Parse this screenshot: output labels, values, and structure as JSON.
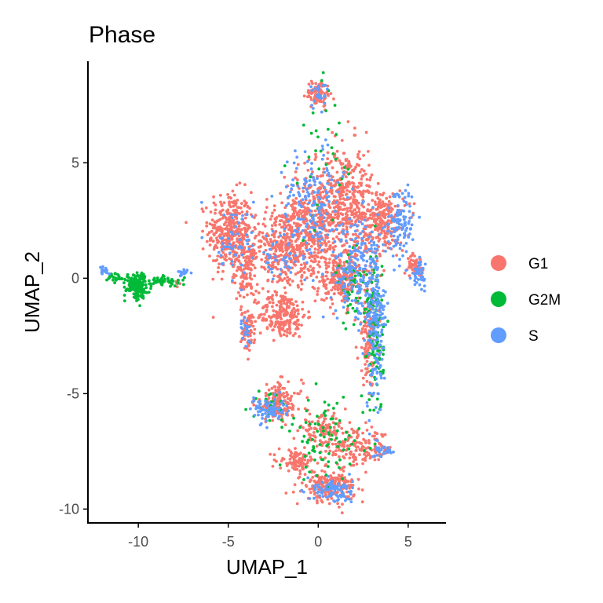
{
  "chart_data": {
    "type": "scatter",
    "title": "Phase",
    "xlabel": "UMAP_1",
    "ylabel": "UMAP_2",
    "xlim": [
      -12.8,
      7.1
    ],
    "ylim": [
      -10.6,
      9.4
    ],
    "xticks": [
      -10,
      -5,
      0,
      5
    ],
    "yticks": [
      -10,
      -5,
      0,
      5
    ],
    "grid": false,
    "legend_position": "right",
    "series": [
      {
        "name": "G1",
        "color": "#F8766D",
        "regions": [
          {
            "cx": -4.9,
            "cy": 2.0,
            "rx": 1.1,
            "ry": 1.6,
            "n": 360
          },
          {
            "cx": -4.0,
            "cy": 0.3,
            "rx": 0.6,
            "ry": 1.2,
            "n": 120
          },
          {
            "cx": -3.9,
            "cy": -2.3,
            "rx": 0.35,
            "ry": 0.8,
            "n": 70
          },
          {
            "cx": -2.0,
            "cy": 1.3,
            "rx": 1.5,
            "ry": 1.6,
            "n": 330
          },
          {
            "cx": -2.0,
            "cy": -1.6,
            "rx": 1.2,
            "ry": 0.9,
            "n": 220
          },
          {
            "cx": -0.3,
            "cy": 2.6,
            "rx": 1.4,
            "ry": 2.0,
            "n": 380
          },
          {
            "cx": 1.6,
            "cy": 3.3,
            "rx": 1.3,
            "ry": 2.2,
            "n": 400
          },
          {
            "cx": 3.6,
            "cy": 2.4,
            "rx": 1.1,
            "ry": 1.3,
            "n": 240
          },
          {
            "cx": 5.4,
            "cy": 0.6,
            "rx": 0.4,
            "ry": 0.4,
            "n": 50
          },
          {
            "cx": 0.0,
            "cy": 8.0,
            "rx": 0.6,
            "ry": 0.5,
            "n": 90
          },
          {
            "cx": 1.3,
            "cy": 0.0,
            "rx": 1.3,
            "ry": 1.1,
            "n": 250
          },
          {
            "cx": 2.8,
            "cy": -2.6,
            "rx": 0.5,
            "ry": 1.8,
            "n": 120
          },
          {
            "cx": -2.2,
            "cy": -5.4,
            "rx": 1.2,
            "ry": 0.8,
            "n": 160
          },
          {
            "cx": 0.3,
            "cy": -6.6,
            "rx": 1.2,
            "ry": 0.6,
            "n": 110
          },
          {
            "cx": 2.3,
            "cy": -7.4,
            "rx": 1.7,
            "ry": 0.7,
            "n": 170
          },
          {
            "cx": -1.2,
            "cy": -7.9,
            "rx": 0.9,
            "ry": 0.4,
            "n": 90
          },
          {
            "cx": 0.6,
            "cy": -9.0,
            "rx": 1.3,
            "ry": 0.6,
            "n": 200
          },
          {
            "cx": -7.8,
            "cy": -0.2,
            "rx": 0.2,
            "ry": 0.1,
            "n": 4
          }
        ]
      },
      {
        "name": "G2M",
        "color": "#00BA38",
        "regions": [
          {
            "cx": -10.1,
            "cy": -0.3,
            "rx": 0.5,
            "ry": 0.5,
            "n": 160
          },
          {
            "cx": -8.6,
            "cy": -0.15,
            "rx": 1.0,
            "ry": 0.2,
            "n": 60
          },
          {
            "cx": -11.2,
            "cy": 0.0,
            "rx": 0.5,
            "ry": 0.2,
            "n": 25
          },
          {
            "cx": 3.2,
            "cy": -2.5,
            "rx": 0.4,
            "ry": 3.2,
            "n": 110
          },
          {
            "cx": 2.1,
            "cy": -0.5,
            "rx": 1.0,
            "ry": 1.6,
            "n": 60
          },
          {
            "cx": 0.5,
            "cy": -7.0,
            "rx": 1.8,
            "ry": 1.6,
            "n": 80
          },
          {
            "cx": 0.0,
            "cy": 5.0,
            "rx": 1.5,
            "ry": 3.0,
            "n": 35
          },
          {
            "cx": -2.5,
            "cy": -5.5,
            "rx": 1.2,
            "ry": 0.7,
            "n": 25
          }
        ]
      },
      {
        "name": "S",
        "color": "#619CFF",
        "regions": [
          {
            "cx": -11.9,
            "cy": 0.3,
            "rx": 0.2,
            "ry": 0.15,
            "n": 18
          },
          {
            "cx": -7.6,
            "cy": 0.2,
            "rx": 0.3,
            "ry": 0.15,
            "n": 14
          },
          {
            "cx": 3.2,
            "cy": -2.0,
            "rx": 0.5,
            "ry": 3.4,
            "n": 190
          },
          {
            "cx": 2.0,
            "cy": 0.5,
            "rx": 1.2,
            "ry": 2.0,
            "n": 160
          },
          {
            "cx": 4.6,
            "cy": 2.5,
            "rx": 0.8,
            "ry": 1.4,
            "n": 110
          },
          {
            "cx": 5.6,
            "cy": 0.2,
            "rx": 0.3,
            "ry": 0.5,
            "n": 45
          },
          {
            "cx": -0.4,
            "cy": 3.2,
            "rx": 1.5,
            "ry": 2.2,
            "n": 160
          },
          {
            "cx": 0.2,
            "cy": 8.0,
            "rx": 0.5,
            "ry": 0.5,
            "n": 25
          },
          {
            "cx": -2.8,
            "cy": -5.7,
            "rx": 0.9,
            "ry": 0.5,
            "n": 80
          },
          {
            "cx": 0.8,
            "cy": -9.2,
            "rx": 1.0,
            "ry": 0.5,
            "n": 90
          },
          {
            "cx": 3.7,
            "cy": -7.4,
            "rx": 0.5,
            "ry": 0.3,
            "n": 30
          },
          {
            "cx": -4.7,
            "cy": 1.5,
            "rx": 1.0,
            "ry": 1.5,
            "n": 50
          },
          {
            "cx": -2.0,
            "cy": 1.0,
            "rx": 1.5,
            "ry": 1.5,
            "n": 50
          },
          {
            "cx": -4.0,
            "cy": -2.3,
            "rx": 0.3,
            "ry": 0.7,
            "n": 20
          }
        ]
      }
    ]
  }
}
